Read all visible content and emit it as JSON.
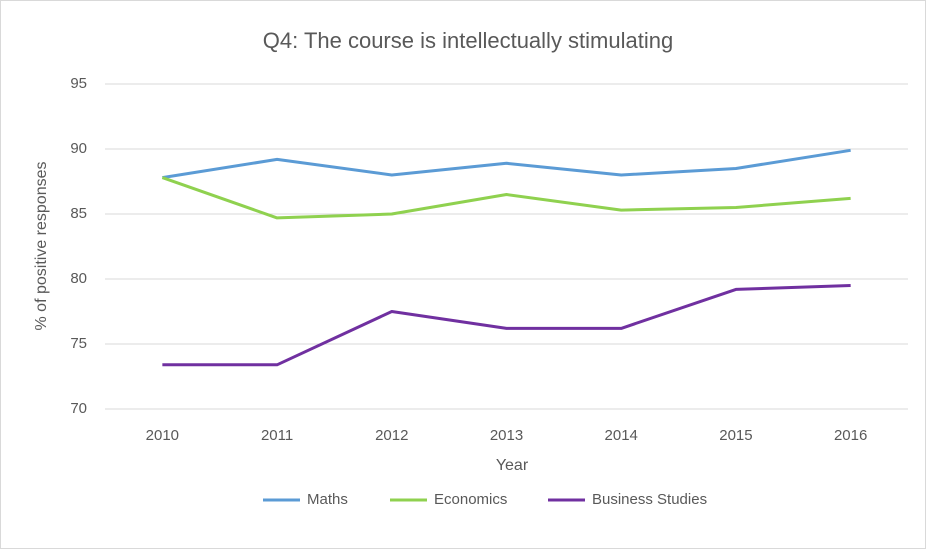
{
  "chart_data": {
    "type": "line",
    "title": "Q4: The course is intellectually stimulating",
    "x_label": "Year",
    "y_label": "% of positive responses",
    "categories": [
      "2010",
      "2011",
      "2012",
      "2013",
      "2014",
      "2015",
      "2016"
    ],
    "series": [
      {
        "name": "Maths",
        "color": "#5b9bd5",
        "values": [
          87.8,
          89.2,
          88.0,
          88.9,
          88.0,
          88.5,
          89.9
        ]
      },
      {
        "name": "Economics",
        "color": "#8fd14f",
        "values": [
          87.8,
          84.7,
          85.0,
          86.5,
          85.3,
          85.5,
          86.2
        ]
      },
      {
        "name": "Business Studies",
        "color": "#7030a0",
        "values": [
          73.4,
          73.4,
          77.5,
          76.2,
          76.2,
          79.2,
          79.5
        ]
      }
    ],
    "ylim": [
      70,
      95
    ],
    "yticks": [
      70,
      75,
      80,
      85,
      90,
      95
    ],
    "grid": true,
    "legend": "bottom"
  }
}
